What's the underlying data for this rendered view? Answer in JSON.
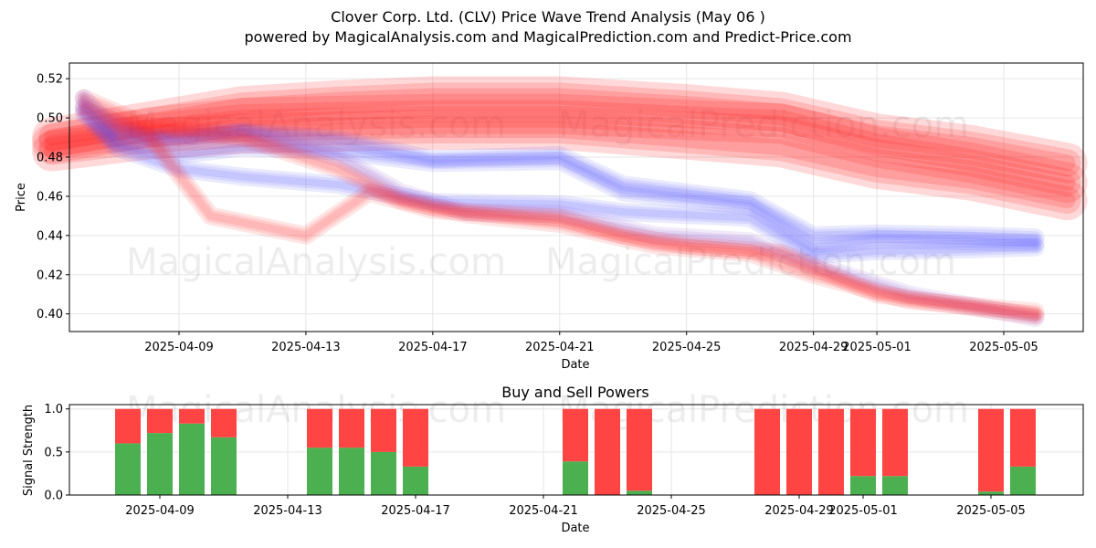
{
  "title_line1": "Clover Corp. Ltd. (CLV) Price Wave Trend Analysis (May 06 )",
  "title_line2": "powered by MagicalAnalysis.com and MagicalPrediction.com and Predict-Price.com",
  "watermarks": [
    "MagicalAnalysis.com",
    "MagicalPrediction.com"
  ],
  "colors": {
    "buy": "#4caf50",
    "sell": "#ff4444",
    "band_red": "#ff0000",
    "band_blue": "#4040ff"
  },
  "chart_data": [
    {
      "type": "area",
      "title": "",
      "xlabel": "Date",
      "ylabel": "Price",
      "ylim": [
        0.391,
        0.528
      ],
      "xlim": [
        "2025-04-05",
        "2025-05-07"
      ],
      "x_ticks": [
        "2025-04-09",
        "2025-04-13",
        "2025-04-17",
        "2025-04-21",
        "2025-04-25",
        "2025-04-29",
        "2025-05-01",
        "2025-05-05"
      ],
      "y_ticks": [
        0.4,
        0.42,
        0.44,
        0.46,
        0.48,
        0.5,
        0.52
      ],
      "grid": true,
      "series": [
        {
          "color": "red",
          "x": [
            "2025-04-05",
            "2025-04-08",
            "2025-04-11",
            "2025-04-14",
            "2025-04-17",
            "2025-04-21",
            "2025-04-25",
            "2025-04-28",
            "2025-05-01",
            "2025-05-04",
            "2025-05-07"
          ],
          "values": [
            0.487,
            0.495,
            0.5,
            0.501,
            0.502,
            0.502,
            0.499,
            0.497,
            0.485,
            0.477,
            0.467
          ]
        },
        {
          "color": "red",
          "x": [
            "2025-04-05",
            "2025-04-08",
            "2025-04-11",
            "2025-04-14",
            "2025-04-17",
            "2025-04-21",
            "2025-04-25",
            "2025-04-28",
            "2025-05-01",
            "2025-05-04",
            "2025-05-07"
          ],
          "values": [
            0.49,
            0.498,
            0.506,
            0.509,
            0.511,
            0.511,
            0.507,
            0.503,
            0.492,
            0.486,
            0.477
          ]
        },
        {
          "color": "red",
          "x": [
            "2025-04-05",
            "2025-04-08",
            "2025-04-11",
            "2025-04-14",
            "2025-04-17",
            "2025-04-21",
            "2025-04-25",
            "2025-04-28",
            "2025-05-01",
            "2025-05-04",
            "2025-05-07"
          ],
          "values": [
            0.483,
            0.489,
            0.492,
            0.493,
            0.494,
            0.494,
            0.489,
            0.485,
            0.474,
            0.468,
            0.458
          ]
        },
        {
          "color": "blue",
          "x": [
            "2025-04-06",
            "2025-04-07",
            "2025-04-09",
            "2025-04-11",
            "2025-04-14",
            "2025-04-17",
            "2025-04-21",
            "2025-04-23",
            "2025-04-27",
            "2025-04-29",
            "2025-05-01",
            "2025-05-04",
            "2025-05-06"
          ],
          "values": [
            0.505,
            0.488,
            0.481,
            0.485,
            0.483,
            0.477,
            0.478,
            0.462,
            0.455,
            0.434,
            0.438,
            0.437,
            0.436
          ]
        },
        {
          "color": "blue",
          "x": [
            "2025-04-06",
            "2025-04-07",
            "2025-04-09",
            "2025-04-11",
            "2025-04-14",
            "2025-04-17",
            "2025-04-21",
            "2025-04-23",
            "2025-04-27",
            "2025-04-29",
            "2025-05-01",
            "2025-05-04",
            "2025-05-06"
          ],
          "values": [
            0.51,
            0.493,
            0.488,
            0.493,
            0.489,
            0.479,
            0.481,
            0.466,
            0.458,
            0.44,
            0.441,
            0.44,
            0.439
          ]
        },
        {
          "color": "blue",
          "x": [
            "2025-04-06",
            "2025-04-07",
            "2025-04-09",
            "2025-04-11",
            "2025-04-14",
            "2025-04-17",
            "2025-04-21",
            "2025-04-23",
            "2025-04-27",
            "2025-04-29",
            "2025-05-01",
            "2025-05-04",
            "2025-05-06"
          ],
          "values": [
            0.502,
            0.485,
            0.474,
            0.47,
            0.466,
            0.457,
            0.456,
            0.452,
            0.449,
            0.43,
            0.432,
            0.433,
            0.434
          ]
        },
        {
          "color": "purple",
          "x": [
            "2025-04-06",
            "2025-04-08",
            "2025-04-11",
            "2025-04-14",
            "2025-04-16",
            "2025-04-18",
            "2025-04-21",
            "2025-04-24",
            "2025-04-27",
            "2025-04-29",
            "2025-05-02",
            "2025-05-06"
          ],
          "values": [
            0.506,
            0.49,
            0.493,
            0.48,
            0.462,
            0.452,
            0.451,
            0.44,
            0.437,
            0.425,
            0.41,
            0.398
          ]
        },
        {
          "color": "red",
          "x": [
            "2025-04-06",
            "2025-04-08",
            "2025-04-10",
            "2025-04-13",
            "2025-04-15",
            "2025-04-17",
            "2025-04-21",
            "2025-04-23",
            "2025-04-25",
            "2025-04-28",
            "2025-05-01",
            "2025-05-06"
          ],
          "values": [
            0.504,
            0.492,
            0.45,
            0.44,
            0.462,
            0.453,
            0.449,
            0.44,
            0.435,
            0.431,
            0.41,
            0.399
          ]
        },
        {
          "color": "red",
          "x": [
            "2025-04-06",
            "2025-04-08",
            "2025-04-11",
            "2025-04-14",
            "2025-04-16",
            "2025-04-18",
            "2025-04-21",
            "2025-04-24",
            "2025-04-27",
            "2025-04-29",
            "2025-05-02",
            "2025-05-06"
          ],
          "values": [
            0.51,
            0.496,
            0.49,
            0.474,
            0.458,
            0.451,
            0.446,
            0.435,
            0.431,
            0.42,
            0.407,
            0.401
          ]
        }
      ]
    },
    {
      "type": "bar",
      "title": "Buy and Sell Powers",
      "xlabel": "Date",
      "ylabel": "Signal Strength",
      "ylim": [
        0,
        1.05
      ],
      "y_ticks": [
        0.0,
        0.5,
        1.0
      ],
      "x_ticks": [
        "2025-04-09",
        "2025-04-13",
        "2025-04-17",
        "2025-04-21",
        "2025-04-25",
        "2025-04-29",
        "2025-05-01",
        "2025-05-05"
      ],
      "categories": [
        "2025-04-08",
        "2025-04-09",
        "2025-04-10",
        "2025-04-11",
        "2025-04-14",
        "2025-04-15",
        "2025-04-16",
        "2025-04-17",
        "2025-04-22",
        "2025-04-23",
        "2025-04-24",
        "2025-04-28",
        "2025-04-29",
        "2025-04-30",
        "2025-05-01",
        "2025-05-02",
        "2025-05-05",
        "2025-05-06"
      ],
      "series": [
        {
          "color": "green",
          "values": [
            0.6,
            0.72,
            0.83,
            0.67,
            0.55,
            0.55,
            0.5,
            0.33,
            0.39,
            0.0,
            0.05,
            0.0,
            0.0,
            0.0,
            0.22,
            0.22,
            0.04,
            0.33
          ]
        },
        {
          "color": "red",
          "values": [
            0.4,
            0.28,
            0.17,
            0.33,
            0.45,
            0.45,
            0.5,
            0.67,
            0.61,
            1.0,
            0.95,
            1.0,
            1.0,
            1.0,
            0.78,
            0.78,
            0.96,
            0.67
          ]
        }
      ]
    }
  ]
}
